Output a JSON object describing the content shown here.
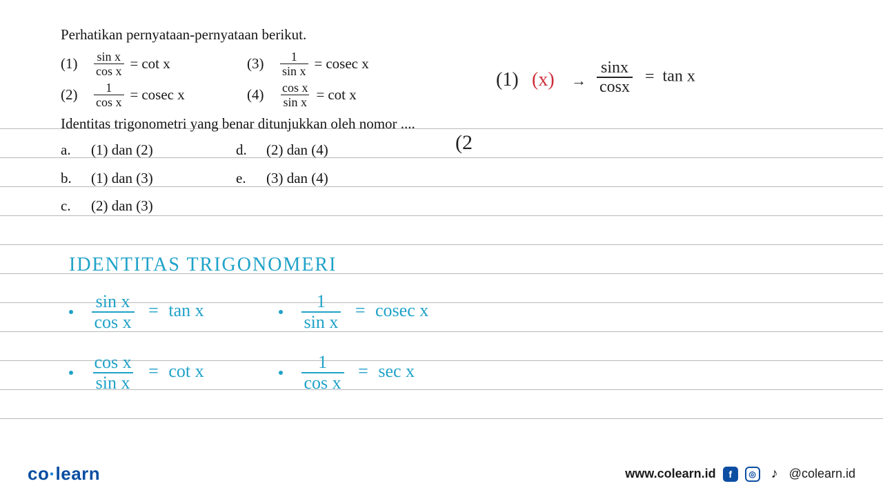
{
  "rules_y": [
    186,
    228,
    270,
    312,
    354,
    396,
    438,
    480,
    522,
    564,
    606
  ],
  "question": {
    "intro": "Perhatikan pernyataan-pernyataan berikut.",
    "statements": [
      {
        "label": "(1)",
        "num": "sin x",
        "den": "cos x",
        "rhs": "cot x"
      },
      {
        "label": "(2)",
        "num": "1",
        "den": "cos x",
        "rhs": "cosec x"
      },
      {
        "label": "(3)",
        "num": "1",
        "den": "sin x",
        "rhs": "cosec x"
      },
      {
        "label": "(4)",
        "num": "cos x",
        "den": "sin x",
        "rhs": "cot x"
      }
    ],
    "stem": "Identitas trigonometri yang benar ditunjukkan oleh nomor ....",
    "options": [
      {
        "l": "a.",
        "t": "(1) dan (2)"
      },
      {
        "l": "b.",
        "t": "(1) dan (3)"
      },
      {
        "l": "c.",
        "t": "(2) dan (3)"
      },
      {
        "l": "d.",
        "t": "(2) dan (4)"
      },
      {
        "l": "e.",
        "t": "(3) dan (4)"
      }
    ]
  },
  "annot": {
    "line1": {
      "num": "(1)",
      "mark": "(x)",
      "arrow": "→",
      "fn": "sinx",
      "fd": "cosx",
      "eq": "=",
      "rhs": "tan x"
    },
    "partial": "(2",
    "heading": "IDENTITAS TRIGONOMERI",
    "ids": [
      {
        "fn": "sin x",
        "fd": "cos x",
        "rhs": "tan x"
      },
      {
        "fn": "cos x",
        "fd": "sin x",
        "rhs": "cot x"
      },
      {
        "fn": "1",
        "fd": "sin x",
        "rhs": "cosec x"
      },
      {
        "fn": "1",
        "fd": "cos x",
        "rhs": "sec x"
      }
    ]
  },
  "footer": {
    "logo_a": "co",
    "logo_b": "learn",
    "url": "www.colearn.id",
    "handle": "@colearn.id"
  },
  "colors": {
    "hand": "#1fa2c8",
    "hand_red": "#cc2e3a",
    "rule": "#b8b8b8"
  }
}
